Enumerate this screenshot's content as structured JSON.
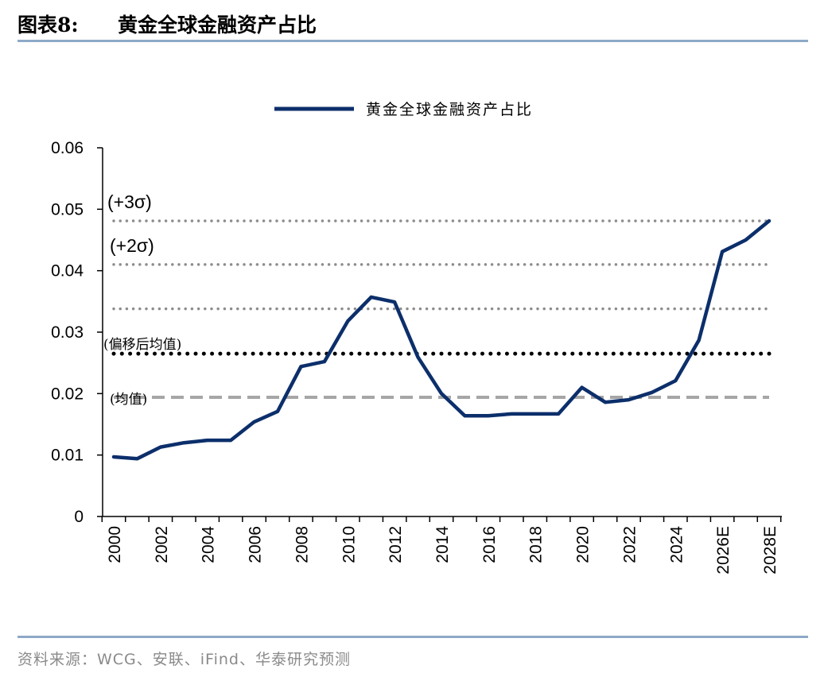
{
  "header": {
    "figure_label": "图表8:",
    "title": "黄金全球金融资产占比"
  },
  "source": "资料来源：WCG、安联、iFind、华泰研究预测",
  "colors": {
    "series": "#0c2f6b",
    "rule": "#8ea9c8",
    "ref_dotted_gray": "#8c8c8c",
    "ref_dotted_black": "#000000",
    "ref_dashed": "#a6a6a6"
  },
  "chart_data": {
    "type": "line",
    "title": "",
    "xlabel": "",
    "ylabel": "",
    "ylim": [
      0,
      0.06
    ],
    "yticks": [
      "0",
      "0.01",
      "0.02",
      "0.03",
      "0.04",
      "0.05",
      "0.06"
    ],
    "x_labels_shown": [
      "2000",
      "2002",
      "2004",
      "2006",
      "2008",
      "2010",
      "2012",
      "2014",
      "2016",
      "2018",
      "2020",
      "2022",
      "2024",
      "2026E",
      "2028E"
    ],
    "legend": {
      "position": "top",
      "entries": [
        "黄金全球金融资产占比"
      ]
    },
    "grid": false,
    "categories": [
      "2000",
      "2001",
      "2002",
      "2003",
      "2004",
      "2005",
      "2006",
      "2007",
      "2008",
      "2009",
      "2010",
      "2011",
      "2012",
      "2013",
      "2014",
      "2015",
      "2016",
      "2017",
      "2018",
      "2019",
      "2020",
      "2021",
      "2022",
      "2023",
      "2024",
      "2025",
      "2026E",
      "2027E",
      "2028E"
    ],
    "series": [
      {
        "name": "黄金全球金融资产占比",
        "values": [
          0.0097,
          0.0094,
          0.0113,
          0.012,
          0.0124,
          0.0124,
          0.0154,
          0.0171,
          0.0244,
          0.0252,
          0.0318,
          0.0357,
          0.0349,
          0.0259,
          0.02,
          0.0164,
          0.0164,
          0.0167,
          0.0167,
          0.0167,
          0.021,
          0.0186,
          0.019,
          0.0202,
          0.0221,
          0.0287,
          0.0431,
          0.045,
          0.0481
        ]
      }
    ],
    "reference_lines": [
      {
        "label": "(+3σ)",
        "value": 0.0481,
        "style": "dotted-gray"
      },
      {
        "label": "(+2σ)",
        "value": 0.041,
        "style": "dotted-gray"
      },
      {
        "label": "",
        "value": 0.0338,
        "style": "dotted-gray"
      },
      {
        "label": "(偏移后均值)",
        "value": 0.0265,
        "style": "dotted-black"
      },
      {
        "label": "(均值)",
        "value": 0.0194,
        "style": "dashed-gray"
      }
    ]
  }
}
